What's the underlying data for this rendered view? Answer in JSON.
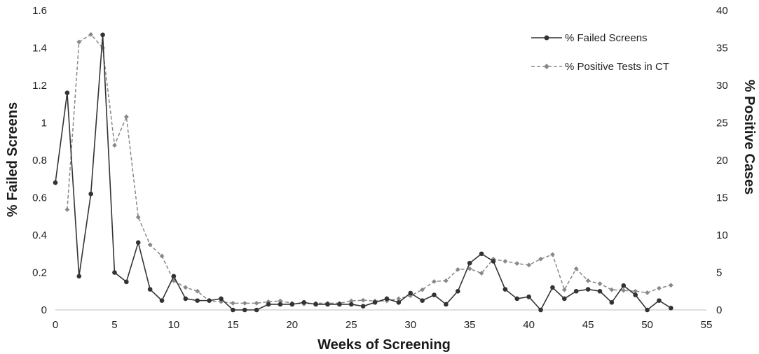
{
  "chart_data": {
    "type": "line",
    "xlabel": "Weeks of Screening",
    "ylabel_left": "% Failed Screens",
    "ylabel_right": "% Positive Cases",
    "xlim": [
      0,
      55
    ],
    "ylim_left": [
      0,
      1.6
    ],
    "ylim_right": [
      0,
      40
    ],
    "x_ticks": [
      "0",
      "5",
      "10",
      "15",
      "20",
      "25",
      "30",
      "35",
      "40",
      "45",
      "50",
      "55"
    ],
    "y_left_ticks": [
      "0",
      "0.2",
      "0.4",
      "0.6",
      "0.8",
      "1",
      "1.2",
      "1.4",
      "1.6"
    ],
    "y_right_ticks": [
      "0",
      "5",
      "10",
      "15",
      "20",
      "25",
      "30",
      "35",
      "40"
    ],
    "grid": false,
    "legend_position": "top-right",
    "series": [
      {
        "name": "% Failed Screens",
        "axis": "left",
        "style": "solid",
        "marker": "circle",
        "color": "#333333",
        "x": [
          0,
          1,
          2,
          3,
          4,
          5,
          6,
          7,
          8,
          9,
          10,
          11,
          12,
          13,
          14,
          15,
          16,
          17,
          18,
          19,
          20,
          21,
          22,
          23,
          24,
          25,
          26,
          27,
          28,
          29,
          30,
          31,
          32,
          33,
          34,
          35,
          36,
          37,
          38,
          39,
          40,
          41,
          42,
          43,
          44,
          45,
          46,
          47,
          48,
          49,
          50,
          51,
          52
        ],
        "y": [
          0.68,
          1.16,
          0.18,
          0.62,
          1.47,
          0.2,
          0.15,
          0.36,
          0.11,
          0.05,
          0.18,
          0.06,
          0.05,
          0.05,
          0.06,
          0.0,
          0.0,
          0.0,
          0.03,
          0.03,
          0.03,
          0.04,
          0.03,
          0.03,
          0.03,
          0.03,
          0.02,
          0.04,
          0.06,
          0.04,
          0.09,
          0.05,
          0.08,
          0.03,
          0.1,
          0.25,
          0.3,
          0.26,
          0.11,
          0.06,
          0.07,
          0.0,
          0.12,
          0.06,
          0.1,
          0.11,
          0.1,
          0.04,
          0.13,
          0.08,
          0.0,
          0.05,
          0.01
        ]
      },
      {
        "name": "% Positive Tests in CT",
        "axis": "right",
        "style": "dashed",
        "marker": "diamond",
        "color": "#888888",
        "x": [
          1,
          2,
          3,
          4,
          5,
          6,
          7,
          8,
          9,
          10,
          11,
          12,
          13,
          14,
          15,
          16,
          17,
          18,
          19,
          20,
          21,
          22,
          23,
          24,
          25,
          26,
          27,
          28,
          29,
          30,
          31,
          32,
          33,
          34,
          35,
          36,
          37,
          38,
          39,
          40,
          41,
          42,
          43,
          44,
          45,
          46,
          47,
          48,
          49,
          50,
          51,
          52
        ],
        "y": [
          13.4,
          35.8,
          36.8,
          35.0,
          22.0,
          25.8,
          12.4,
          8.7,
          7.2,
          3.9,
          3.0,
          2.5,
          1.2,
          1.1,
          0.9,
          0.9,
          0.9,
          1.1,
          1.2,
          0.9,
          0.8,
          0.9,
          0.9,
          0.9,
          1.2,
          1.3,
          1.2,
          1.2,
          1.5,
          1.9,
          2.7,
          3.8,
          3.9,
          5.4,
          5.5,
          4.9,
          6.8,
          6.5,
          6.2,
          6.0,
          6.8,
          7.4,
          2.7,
          5.5,
          3.9,
          3.5,
          2.7,
          2.6,
          2.5,
          2.3,
          2.9,
          3.3
        ]
      }
    ]
  }
}
